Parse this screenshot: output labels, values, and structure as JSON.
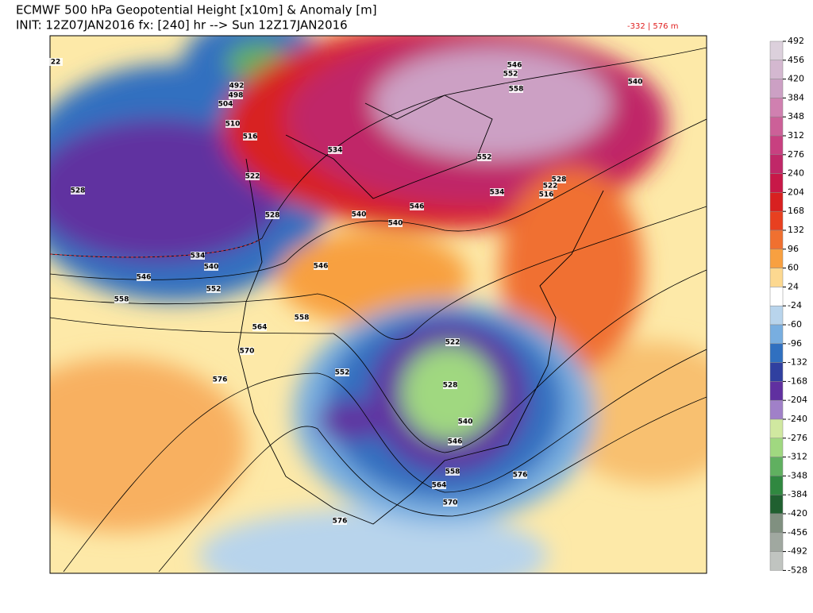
{
  "header": {
    "title": "ECMWF 500 hPa Geopotential Height [x10m] & Anomaly [m]",
    "subtitle": "INIT: 12Z07JAN2016 fx: [240] hr --> Sun 12Z17JAN2016",
    "range_note": "-332 | 576 m"
  },
  "colorbar": {
    "ticks": [
      492,
      456,
      420,
      384,
      348,
      312,
      276,
      240,
      204,
      168,
      132,
      96,
      60,
      24,
      -24,
      -60,
      -96,
      -132,
      -168,
      -204,
      -240,
      -276,
      -312,
      -348,
      -384,
      -420,
      -456,
      -492,
      -528
    ],
    "colors": [
      "#dcd0dc",
      "#d4b8d0",
      "#cca0c4",
      "#d080b0",
      "#cc6098",
      "#c84080",
      "#c02868",
      "#c81848",
      "#d82020",
      "#e84020",
      "#f07030",
      "#f8a040",
      "#fcd890",
      "#ffffff",
      "#b8d4ec",
      "#78aee0",
      "#3070c0",
      "#3040a0",
      "#6030a0",
      "#a080c8",
      "#d0e8a0",
      "#a0d880",
      "#60b060",
      "#308840",
      "#206030",
      "#809080",
      "#a0a8a0",
      "#c0c4c0"
    ]
  },
  "contour_labels": [
    22,
    492,
    498,
    504,
    510,
    516,
    522,
    528,
    528,
    534,
    540,
    546,
    552,
    558,
    546,
    534,
    540,
    540,
    546,
    552,
    546,
    552,
    558,
    540,
    528,
    522,
    516,
    534,
    564,
    558,
    570,
    576,
    552,
    522,
    528,
    540,
    546,
    558,
    564,
    570,
    576,
    576
  ]
}
